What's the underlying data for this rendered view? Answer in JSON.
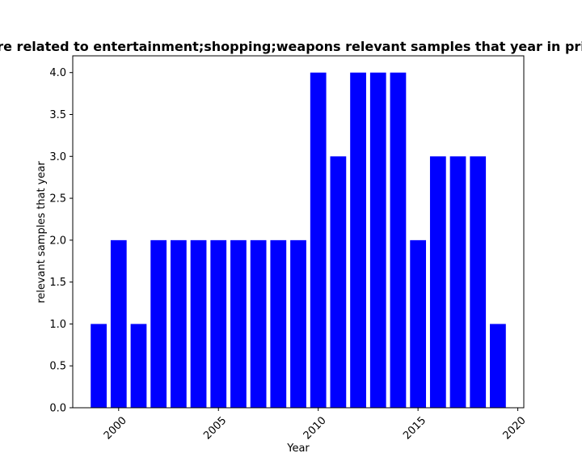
{
  "chart_data": {
    "type": "bar",
    "title": "...re related to entertainment;shopping;weapons relevant samples that year in pri...",
    "xlabel": "Year",
    "ylabel": "relevant samples that year",
    "x": [
      1999,
      2000,
      2001,
      2002,
      2003,
      2004,
      2005,
      2006,
      2007,
      2008,
      2009,
      2010,
      2011,
      2012,
      2013,
      2014,
      2015,
      2016,
      2017,
      2018,
      2019
    ],
    "values": [
      1,
      2,
      1,
      2,
      2,
      2,
      2,
      2,
      2,
      2,
      2,
      4,
      3,
      4,
      4,
      4,
      2,
      3,
      3,
      3,
      1
    ],
    "xlim": [
      1997.7,
      2020.3
    ],
    "ylim": [
      0,
      4.2
    ],
    "xticks": [
      "2000",
      "2005",
      "2010",
      "2015",
      "2020"
    ],
    "yticks": [
      "0.0",
      "0.5",
      "1.0",
      "1.5",
      "2.0",
      "2.5",
      "3.0",
      "3.5",
      "4.0"
    ],
    "bar_color": "#0000ff",
    "grid": false
  }
}
